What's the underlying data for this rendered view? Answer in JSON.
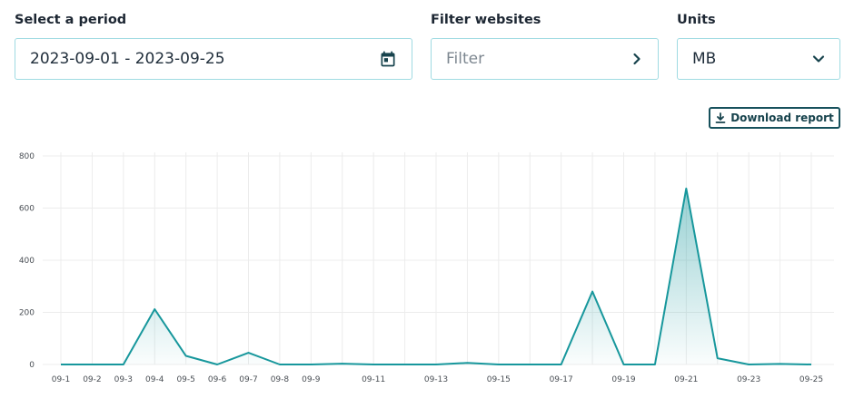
{
  "period": {
    "label": "Select a period",
    "value": "2023-09-01 - 2023-09-25",
    "icon": "calendar-icon"
  },
  "filter": {
    "label": "Filter websites",
    "placeholder": "Filter",
    "icon": "chevron-right-icon"
  },
  "units": {
    "label": "Units",
    "value": "MB",
    "icon": "chevron-down-icon"
  },
  "download": {
    "label": "Download report",
    "icon": "download-icon"
  },
  "colors": {
    "accent": "#17979c",
    "border": "#9fdbe2",
    "text": "#1d2733",
    "button_border": "#17515c"
  },
  "chart_data": {
    "type": "area",
    "x": [
      "09-1",
      "09-2",
      "09-3",
      "09-4",
      "09-5",
      "09-6",
      "09-7",
      "09-8",
      "09-9",
      "09-10",
      "09-11",
      "09-12",
      "09-13",
      "09-14",
      "09-15",
      "09-16",
      "09-17",
      "09-18",
      "09-19",
      "09-20",
      "09-21",
      "09-22",
      "09-23",
      "09-24",
      "09-25"
    ],
    "x_tick_labels": [
      "09-1",
      "09-2",
      "09-3",
      "09-4",
      "09-5",
      "09-6",
      "09-7",
      "09-8",
      "09-9",
      "",
      "09-11",
      "",
      "09-13",
      "",
      "09-15",
      "",
      "09-17",
      "",
      "09-19",
      "",
      "09-21",
      "",
      "09-23",
      "",
      "09-25"
    ],
    "values": [
      0,
      0,
      0,
      212,
      33,
      0,
      45,
      0,
      0,
      3,
      0,
      0,
      0,
      6,
      0,
      0,
      0,
      280,
      0,
      0,
      675,
      24,
      0,
      2,
      0
    ],
    "ylim": [
      0,
      800
    ],
    "yticks": [
      0,
      200,
      400,
      600,
      800
    ],
    "grid": true,
    "legend": "none",
    "title": "",
    "xlabel": "",
    "ylabel": ""
  }
}
